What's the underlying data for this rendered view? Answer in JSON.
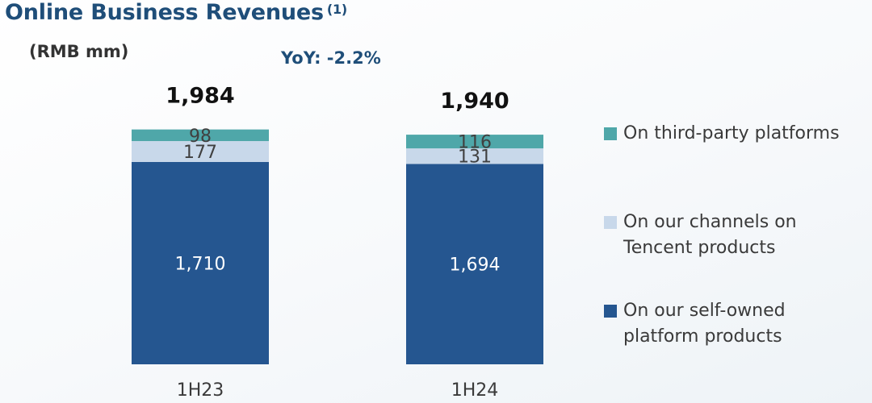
{
  "title": "Online Business Revenues",
  "title_sup": "(1)",
  "unit_label": "(RMB mm)",
  "yoy_label": "YoY: -2.2%",
  "legend": [
    {
      "label": "On third-party platforms",
      "color": "#4fa7a9"
    },
    {
      "label": "On our channels on Tencent products",
      "color": "#c8d8ea"
    },
    {
      "label": "On our self-owned platform products",
      "color": "#255690"
    }
  ],
  "chart_data": {
    "type": "bar",
    "stacked": true,
    "categories": [
      "1H23",
      "1H24"
    ],
    "series": [
      {
        "name": "On our self-owned platform products",
        "values": [
          1710,
          1694
        ],
        "color": "#255690",
        "label_color": "#ffffff"
      },
      {
        "name": "On our channels on Tencent products",
        "values": [
          177,
          131
        ],
        "color": "#c8d8ea",
        "label_color": "#404040"
      },
      {
        "name": "On third-party platforms",
        "values": [
          98,
          116
        ],
        "color": "#4fa7a9",
        "label_color": "#404040"
      }
    ],
    "totals": [
      "1,984",
      "1,940"
    ],
    "value_labels": [
      [
        "1,710",
        "177",
        "98"
      ],
      [
        "1,694",
        "131",
        "116"
      ]
    ],
    "title": "Online Business Revenues",
    "ylabel": "(RMB mm)",
    "legend_position": "right"
  }
}
